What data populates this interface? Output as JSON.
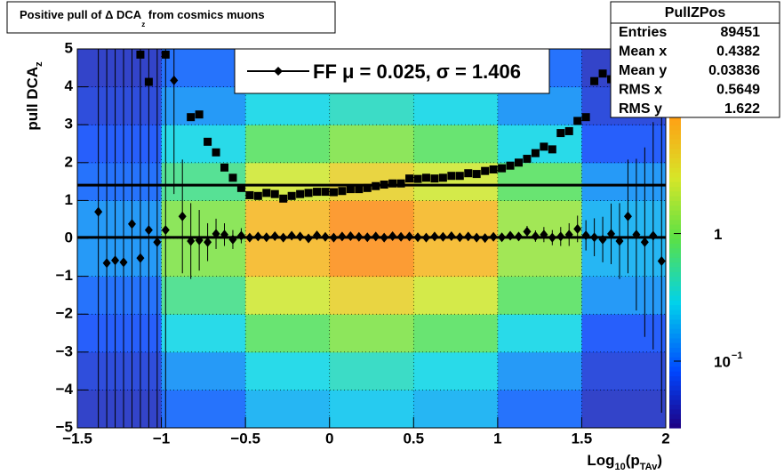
{
  "chart_data": {
    "type": "scatter",
    "title_parts": [
      "Positive pull of Δ DCA",
      "z",
      " from cosmics muons"
    ],
    "xlabel_parts": [
      "Log",
      "10",
      "(p",
      "TAv",
      ")"
    ],
    "ylabel_parts": [
      "pull DCA",
      "z"
    ],
    "xlim": [
      -1.5,
      2
    ],
    "ylim": [
      -5,
      5
    ],
    "xticks": [
      {
        "value": -1.5,
        "label": "−1.5"
      },
      {
        "value": -1,
        "label": "−1"
      },
      {
        "value": -0.5,
        "label": "−0.5"
      },
      0,
      0.5,
      1,
      1.5,
      2
    ],
    "yticks": [
      {
        "value": -5,
        "label": "−5"
      },
      {
        "value": -4,
        "label": "−4"
      },
      {
        "value": -3,
        "label": "−3"
      },
      {
        "value": -2,
        "label": "−2"
      },
      {
        "value": -1,
        "label": "−1"
      },
      0,
      1,
      2,
      3,
      4,
      5
    ],
    "grid": true,
    "x": [
      -1.375,
      -1.325,
      -1.275,
      -1.225,
      -1.175,
      -1.125,
      -1.075,
      -1.025,
      -0.975,
      -0.925,
      -0.875,
      -0.825,
      -0.775,
      -0.725,
      -0.675,
      -0.625,
      -0.575,
      -0.525,
      -0.475,
      -0.425,
      -0.375,
      -0.325,
      -0.275,
      -0.225,
      -0.175,
      -0.125,
      -0.075,
      -0.025,
      0.025,
      0.075,
      0.125,
      0.175,
      0.225,
      0.275,
      0.325,
      0.375,
      0.425,
      0.475,
      0.525,
      0.575,
      0.625,
      0.675,
      0.725,
      0.775,
      0.825,
      0.875,
      0.925,
      0.975,
      1.025,
      1.075,
      1.125,
      1.175,
      1.225,
      1.275,
      1.325,
      1.375,
      1.425,
      1.475,
      1.525,
      1.575,
      1.625,
      1.675,
      1.725,
      1.775,
      1.825,
      1.875,
      1.925,
      1.975
    ],
    "series": [
      {
        "marker": "square",
        "color": "#000000",
        "values": [
          null,
          null,
          null,
          null,
          null,
          4.85,
          4.13,
          null,
          4.85,
          null,
          null,
          3.2,
          3.27,
          2.55,
          2.27,
          1.87,
          1.6,
          1.33,
          1.14,
          1.12,
          1.2,
          1.17,
          1.05,
          1.12,
          1.17,
          1.2,
          1.23,
          1.23,
          1.22,
          1.25,
          1.3,
          1.3,
          1.33,
          1.38,
          1.42,
          1.45,
          1.45,
          1.58,
          1.57,
          1.6,
          1.58,
          1.6,
          1.65,
          1.65,
          1.72,
          1.7,
          1.78,
          1.82,
          1.85,
          1.92,
          2.0,
          2.1,
          2.25,
          2.42,
          2.35,
          2.78,
          2.83,
          3.1,
          3.2,
          4.15,
          4.35,
          4.2,
          4.05,
          null,
          null,
          null,
          null,
          null
        ]
      },
      {
        "marker": "diamond",
        "color": "#000000",
        "values": [
          0.7,
          -0.65,
          -0.58,
          -0.63,
          0.38,
          -0.52,
          0.22,
          -0.1,
          0.22,
          4.17,
          0.58,
          -0.07,
          -0.05,
          -0.1,
          0.12,
          0.1,
          -0.03,
          0.07,
          0.02,
          0.05,
          0.03,
          0.06,
          0.02,
          0.07,
          0.05,
          0.0,
          0.08,
          0.04,
          0.02,
          0.05,
          0.06,
          0.04,
          0.03,
          0.05,
          0.02,
          0.06,
          0.04,
          0.05,
          0.03,
          0.02,
          0.05,
          0.04,
          0.06,
          0.03,
          0.05,
          0.02,
          0.01,
          0.04,
          0.03,
          0.07,
          0.05,
          0.18,
          0.06,
          0.1,
          0.02,
          0.05,
          0.1,
          0.25,
          0.08,
          0.03,
          -0.03,
          0.12,
          -0.07,
          0.58,
          0.1,
          -0.1,
          0.07,
          -0.6
        ],
        "errors": [
          6,
          6,
          6,
          6,
          6,
          6,
          6,
          6,
          6,
          3,
          1.5,
          1.0,
          0.8,
          0.5,
          0.4,
          0.3,
          0.25,
          0.2,
          0.1,
          0.1,
          0.1,
          0.1,
          0.1,
          0.1,
          0.1,
          0.1,
          0.1,
          0.1,
          0.1,
          0.1,
          0.1,
          0.1,
          0.1,
          0.1,
          0.1,
          0.1,
          0.1,
          0.1,
          0.1,
          0.1,
          0.1,
          0.1,
          0.1,
          0.1,
          0.1,
          0.1,
          0.1,
          0.1,
          0.1,
          0.1,
          0.1,
          0.15,
          0.15,
          0.2,
          0.2,
          0.25,
          0.3,
          0.35,
          0.4,
          0.5,
          0.6,
          0.8,
          1.0,
          1.5,
          2.0,
          2.5,
          3.0,
          4.0
        ]
      }
    ],
    "fit": {
      "mu": 0.025,
      "sigma": 1.406,
      "color": "#000000"
    },
    "legend_label": "FF μ =  0.025, σ =   1.406",
    "heatmap": {
      "xbins": [
        -1.5,
        -1,
        -0.5,
        0,
        0.5,
        1,
        1.5,
        2
      ],
      "ybins": [
        -5,
        -4,
        -3,
        -2,
        -1,
        0,
        1,
        2,
        3,
        4,
        5
      ],
      "z": [
        [
          0.05,
          0.1,
          0.2,
          0.25,
          0.2,
          0.1,
          0.05
        ],
        [
          0.06,
          0.15,
          0.3,
          0.4,
          0.3,
          0.15,
          0.06
        ],
        [
          0.08,
          0.3,
          0.8,
          1.2,
          0.8,
          0.3,
          0.08
        ],
        [
          0.1,
          0.6,
          2.5,
          4,
          2.5,
          0.8,
          0.15
        ],
        [
          0.15,
          1.2,
          6,
          10,
          6,
          1.5,
          0.2
        ],
        [
          0.15,
          1.2,
          6,
          10,
          6,
          1.5,
          0.2
        ],
        [
          0.1,
          0.6,
          2.5,
          4,
          2.5,
          0.8,
          0.15
        ],
        [
          0.08,
          0.3,
          0.8,
          1.2,
          0.8,
          0.3,
          0.08
        ],
        [
          0.06,
          0.15,
          0.3,
          0.4,
          0.3,
          0.15,
          0.06
        ],
        [
          0.05,
          0.1,
          0.2,
          0.25,
          0.2,
          0.1,
          0.05
        ]
      ],
      "zlim": [
        0.03,
        28
      ],
      "zticks": [
        {
          "value": 0.1,
          "label": "10",
          "exponent": "−1"
        },
        1
      ]
    },
    "stats": {
      "title": "PullZPos",
      "rows": [
        [
          "Entries",
          89451
        ],
        [
          "Mean x",
          0.4382
        ],
        [
          "Mean y",
          0.03836
        ],
        [
          "RMS x",
          0.5649
        ],
        [
          "RMS y",
          1.622
        ]
      ]
    }
  }
}
